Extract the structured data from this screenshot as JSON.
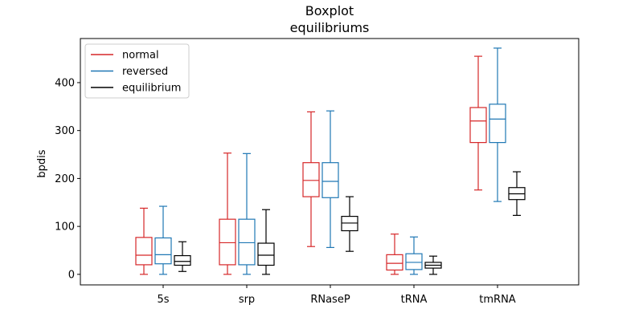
{
  "chart_data": {
    "type": "box",
    "title": "Boxplot",
    "subtitle": "equilibriums",
    "xlabel": "",
    "ylabel": "bpdis",
    "ylim": [
      -22,
      492
    ],
    "yticks": [
      0,
      100,
      200,
      300,
      400
    ],
    "grid": false,
    "legend_position": "top-left",
    "categories": [
      "5s",
      "srp",
      "RNaseP",
      "tRNA",
      "tmRNA"
    ],
    "series": [
      {
        "name": "normal",
        "color": "#d62728",
        "boxes": [
          {
            "whislo": 0,
            "q1": 20,
            "med": 40,
            "q3": 77,
            "whishi": 138
          },
          {
            "whislo": 0,
            "q1": 20,
            "med": 66,
            "q3": 115,
            "whishi": 253
          },
          {
            "whislo": 58,
            "q1": 162,
            "med": 196,
            "q3": 233,
            "whishi": 339
          },
          {
            "whislo": 0,
            "q1": 9,
            "med": 23,
            "q3": 41,
            "whishi": 84
          },
          {
            "whislo": 176,
            "q1": 275,
            "med": 320,
            "q3": 348,
            "whishi": 455
          }
        ]
      },
      {
        "name": "reversed",
        "color": "#1f77b4",
        "boxes": [
          {
            "whislo": 0,
            "q1": 22,
            "med": 41,
            "q3": 76,
            "whishi": 142
          },
          {
            "whislo": 0,
            "q1": 20,
            "med": 66,
            "q3": 115,
            "whishi": 252
          },
          {
            "whislo": 56,
            "q1": 160,
            "med": 194,
            "q3": 233,
            "whishi": 341
          },
          {
            "whislo": 0,
            "q1": 10,
            "med": 25,
            "q3": 43,
            "whishi": 78
          },
          {
            "whislo": 152,
            "q1": 275,
            "med": 324,
            "q3": 355,
            "whishi": 472
          }
        ]
      },
      {
        "name": "equilibrium",
        "color": "#000000",
        "boxes": [
          {
            "whislo": 6,
            "q1": 19,
            "med": 27,
            "q3": 39,
            "whishi": 68
          },
          {
            "whislo": 0,
            "q1": 19,
            "med": 40,
            "q3": 65,
            "whishi": 135
          },
          {
            "whislo": 48,
            "q1": 91,
            "med": 107,
            "q3": 121,
            "whishi": 162
          },
          {
            "whislo": 0,
            "q1": 13,
            "med": 19,
            "q3": 25,
            "whishi": 38
          },
          {
            "whislo": 123,
            "q1": 156,
            "med": 168,
            "q3": 181,
            "whishi": 214
          }
        ]
      }
    ]
  }
}
